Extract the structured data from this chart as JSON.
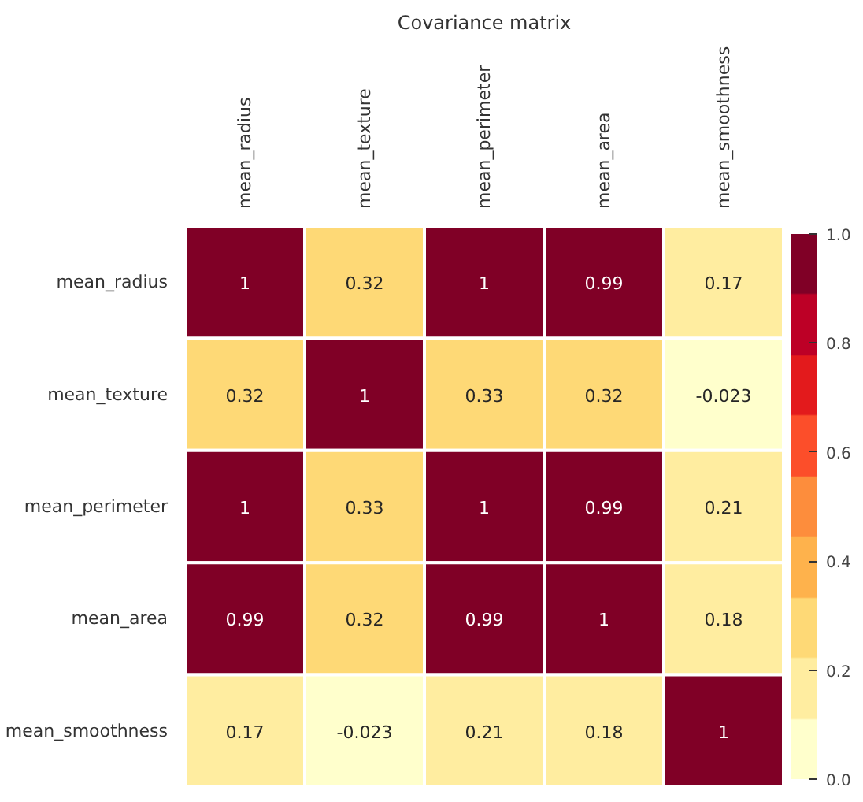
{
  "chart_data": {
    "type": "heatmap",
    "title": "Covariance matrix",
    "categories": [
      "mean_radius",
      "mean_texture",
      "mean_perimeter",
      "mean_area",
      "mean_smoothness"
    ],
    "y_categories": [
      "mean_radius",
      "mean_texture",
      "mean_perimeter",
      "mean_area",
      "mean_smoothness"
    ],
    "cells": [
      [
        1,
        0.32,
        1,
        0.99,
        0.17
      ],
      [
        0.32,
        1,
        0.33,
        0.32,
        -0.023
      ],
      [
        1,
        0.33,
        1,
        0.99,
        0.21
      ],
      [
        0.99,
        0.32,
        0.99,
        1,
        0.18
      ],
      [
        0.17,
        -0.023,
        0.21,
        0.18,
        1
      ]
    ],
    "clim": [
      0,
      1
    ],
    "cticks": [
      {
        "value": 0,
        "label": "0.0"
      },
      {
        "value": 0.2,
        "label": "0.2"
      },
      {
        "value": 0.4,
        "label": "0.4"
      },
      {
        "value": 0.6,
        "label": "0.6"
      },
      {
        "value": 0.8,
        "label": "0.8"
      },
      {
        "value": 1,
        "label": "1.0"
      }
    ],
    "data_labels": true
  }
}
